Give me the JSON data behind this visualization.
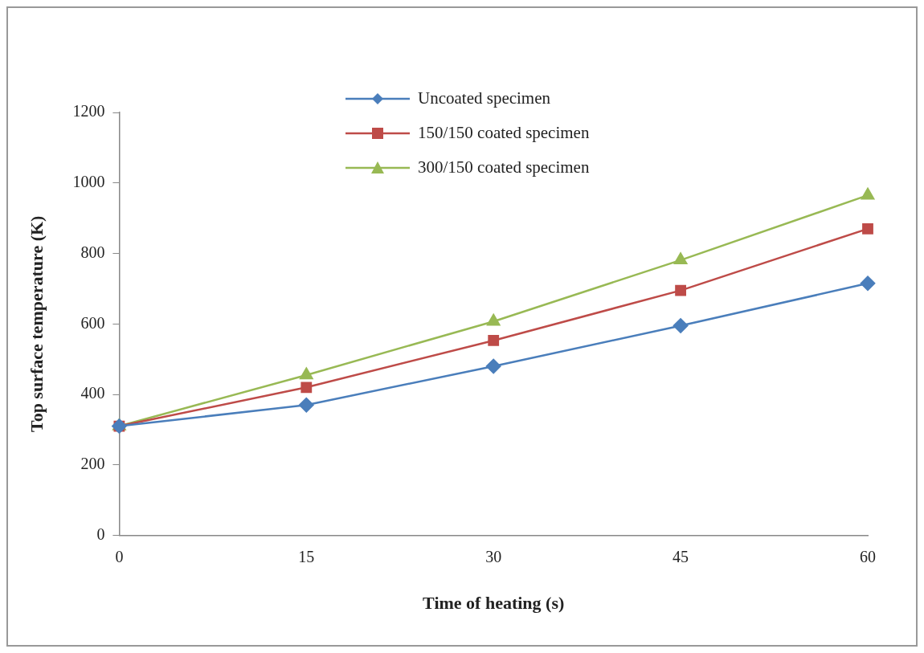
{
  "chart_data": {
    "type": "line",
    "xlabel": "Time of heating (s)",
    "ylabel": "Top surface temperature (K)",
    "x": [
      0,
      15,
      30,
      45,
      60
    ],
    "xlim": [
      0,
      60
    ],
    "xticks": [
      0,
      15,
      30,
      45,
      60
    ],
    "ylim": [
      0,
      1200
    ],
    "yticks": [
      0,
      200,
      400,
      600,
      800,
      1000,
      1200
    ],
    "grid": false,
    "legend": "top",
    "series": [
      {
        "name": "Uncoated specimen",
        "color": "#4a7ebb",
        "marker": "diamond",
        "values": [
          310,
          370,
          480,
          595,
          715
        ]
      },
      {
        "name": "150/150 coated specimen",
        "color": "#be4b48",
        "marker": "square",
        "values": [
          310,
          420,
          553,
          695,
          870
        ]
      },
      {
        "name": "300/150 coated specimen",
        "color": "#98b954",
        "marker": "triangle",
        "values": [
          310,
          455,
          607,
          781,
          965
        ]
      }
    ]
  }
}
